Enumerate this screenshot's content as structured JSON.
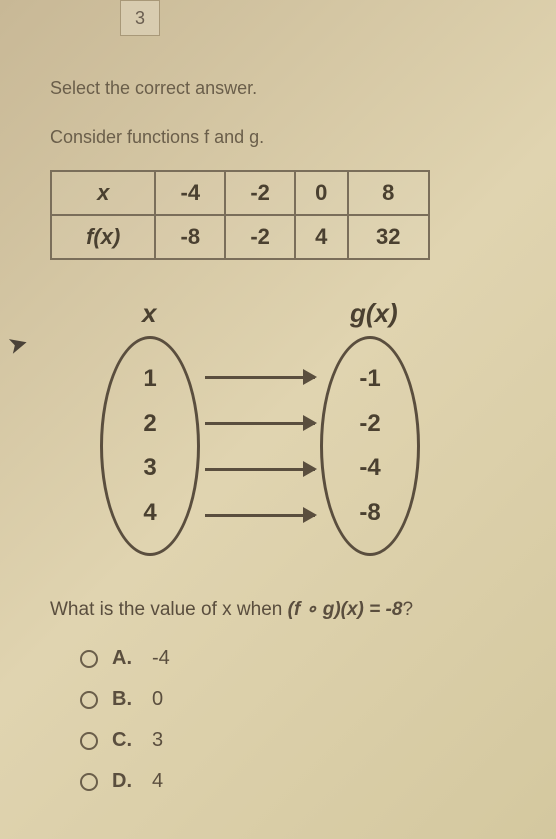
{
  "tab_number": "3",
  "instruction": "Select the correct answer.",
  "subtitle": "Consider functions f and g.",
  "ftable": {
    "header_x": "x",
    "header_fx": "f(x)",
    "cols": [
      "-4",
      "-2",
      "0",
      "8"
    ],
    "vals": [
      "-8",
      "-2",
      "4",
      "32"
    ],
    "border_color": "#7a6e5a",
    "cell_fontsize": 22
  },
  "mapping": {
    "left_label": "x",
    "right_label": "g(x)",
    "left_values": [
      "1",
      "2",
      "3",
      "4"
    ],
    "right_values": [
      "-1",
      "-2",
      "-4",
      "-8"
    ],
    "oval_border": "#5a4e3e",
    "arrow_color": "#5a4e3e"
  },
  "question_prefix": "What is the value of x when ",
  "question_expr": "(f ∘ g)(x) = -8",
  "question_suffix": "?",
  "options": [
    {
      "label": "A.",
      "value": "-4"
    },
    {
      "label": "B.",
      "value": "0"
    },
    {
      "label": "C.",
      "value": "3"
    },
    {
      "label": "D.",
      "value": "4"
    }
  ],
  "colors": {
    "bg_start": "#c8b896",
    "bg_end": "#d4c89f",
    "text": "#5a5048"
  }
}
